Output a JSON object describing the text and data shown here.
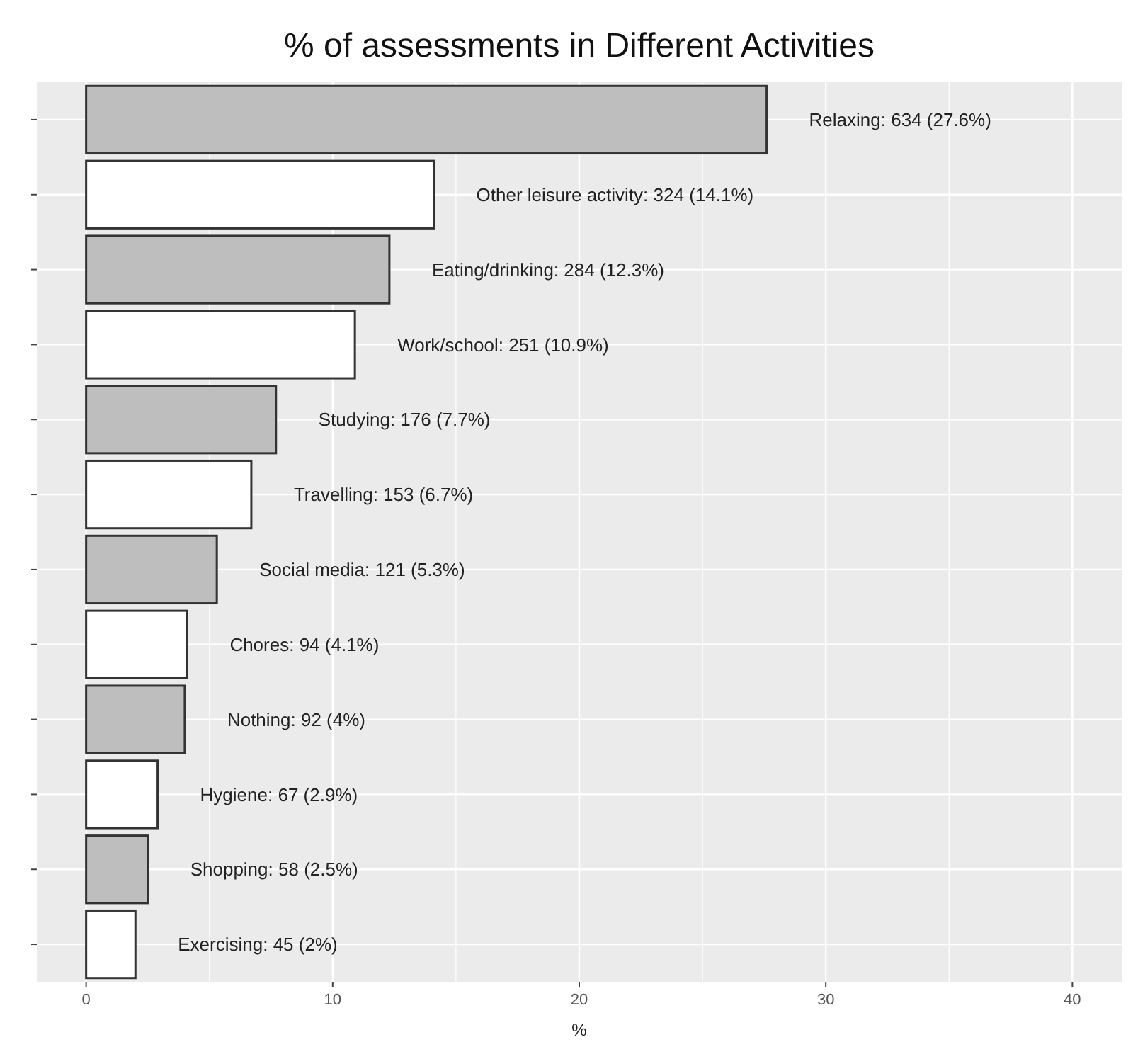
{
  "chart_data": {
    "type": "bar",
    "orientation": "horizontal",
    "title": "% of assessments in Different Activities",
    "xlabel": "%",
    "categories": [
      null,
      null,
      null,
      null,
      null,
      null,
      null,
      null,
      null,
      null,
      null,
      null
    ],
    "values": [
      27.6,
      14.1,
      12.3,
      10.9,
      7.7,
      6.7,
      5.3,
      4.1,
      4,
      2.9,
      2.5,
      2
    ],
    "colors": [
      "#bebebe",
      "#ffffff",
      "#bebebe",
      "#ffffff",
      "#bebebe",
      "#ffffff",
      "#bebebe",
      "#ffffff",
      "#bebebe",
      "#ffffff",
      "#bebebe",
      "#ffffff"
    ],
    "value_labels": [
      "Relaxing: 634 (27.6%)",
      "Other leisure activity: 324 (14.1%)",
      "Eating/drinking: 284 (12.3%)",
      "Work/school: 251 (10.9%)",
      "Studying: 176 (7.7%)",
      "Travelling: 153 (6.7%)",
      "Social media: 121 (5.3%)",
      "Chores: 94 (4.1%)",
      "Nothing: 92 (4%)",
      "Hygiene: 67 (2.9%)",
      "Shopping: 58 (2.5%)",
      "Exercising: 45 (2%)"
    ],
    "xlim": [
      -2,
      42
    ],
    "xticks": [
      0,
      10,
      20,
      30,
      40
    ],
    "grid": true,
    "tick_labels": "x"
  }
}
